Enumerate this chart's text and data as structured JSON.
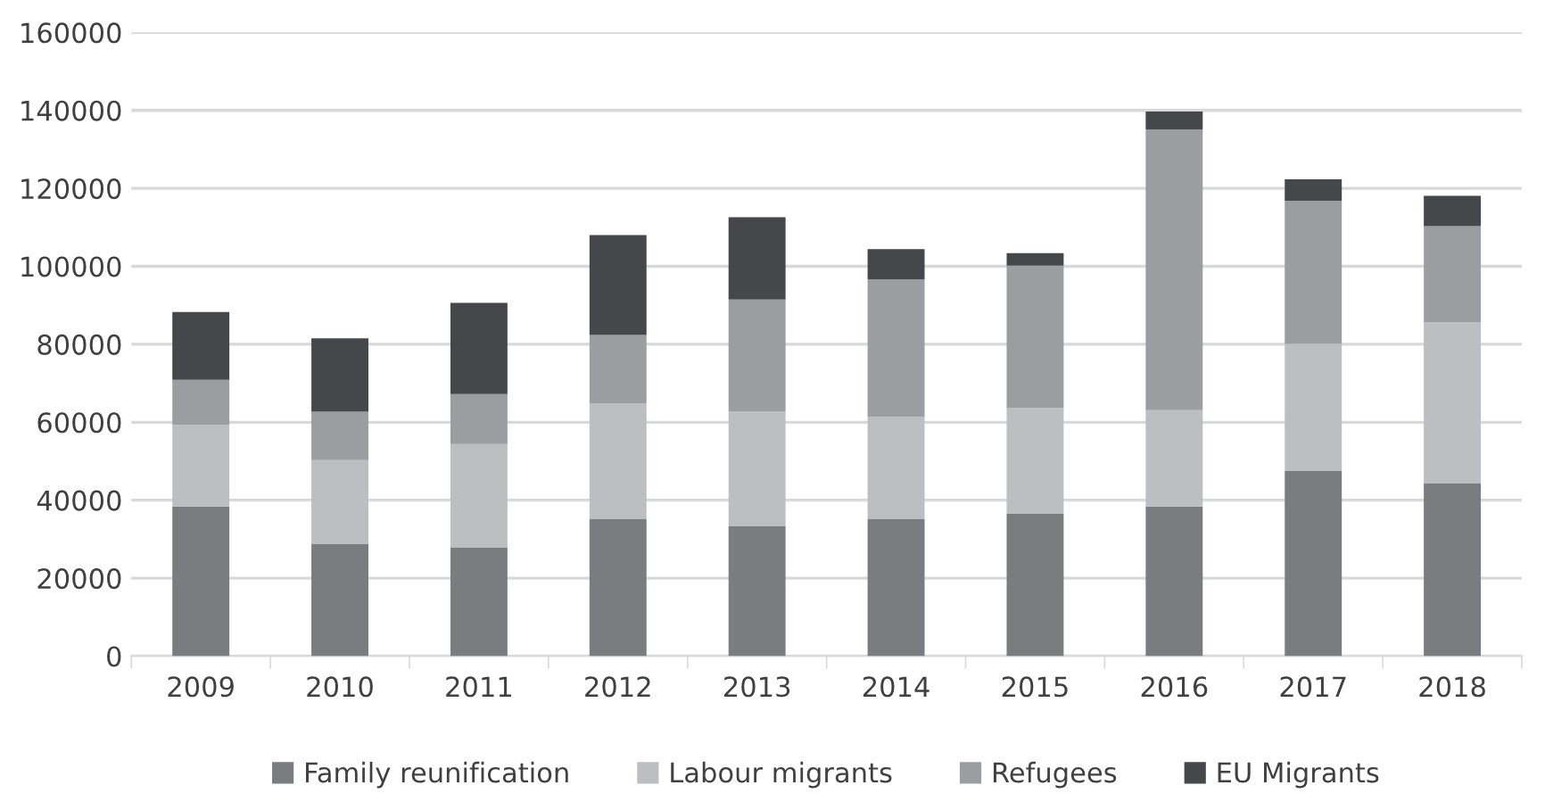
{
  "chart_data": {
    "type": "bar",
    "stacked": true,
    "categories": [
      "2009",
      "2010",
      "2011",
      "2012",
      "2013",
      "2014",
      "2015",
      "2016",
      "2017",
      "2018"
    ],
    "series": [
      {
        "name": "Family reunification",
        "color": "#7b7c80",
        "values": [
          38400,
          28700,
          27800,
          35100,
          33300,
          35100,
          36500,
          38400,
          47500,
          44300
        ]
      },
      {
        "name": "Labour migrants",
        "color": "#bdbec1",
        "values": [
          21000,
          21600,
          26600,
          29800,
          29400,
          26200,
          27100,
          24700,
          32600,
          41300
        ]
      },
      {
        "name": "Refugees",
        "color": "#9c9da0",
        "values": [
          11500,
          12400,
          12800,
          17500,
          28800,
          35300,
          36600,
          72000,
          36700,
          24700
        ]
      },
      {
        "name": "EU Migrants",
        "color": "#46474a",
        "values": [
          17400,
          18800,
          23400,
          25600,
          21100,
          7800,
          3200,
          4600,
          5500,
          7800
        ]
      }
    ],
    "ylim": [
      0,
      160000
    ],
    "yticks": [
      0,
      20000,
      40000,
      60000,
      80000,
      100000,
      120000,
      140000,
      160000
    ],
    "grid": "y",
    "legend": "bottom"
  }
}
